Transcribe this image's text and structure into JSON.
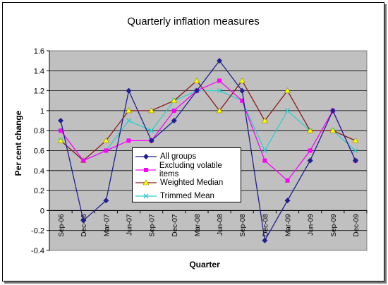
{
  "chart_data": {
    "type": "line",
    "title": "Quarterly inflation measures",
    "xlabel": "Quarter",
    "ylabel": "Per cent change",
    "categories": [
      "Sep-06",
      "Dec-06",
      "Mar-07",
      "Jun-07",
      "Sep-07",
      "Dec-07",
      "Mar-08",
      "Jun-08",
      "Sep-08",
      "Dec-08",
      "Mar-09",
      "Jun-09",
      "Sep-09",
      "Dec-09"
    ],
    "ylim": [
      -0.4,
      1.6
    ],
    "yticks": [
      "-0.4",
      "-0.2",
      "0",
      "0.2",
      "0.4",
      "0.6",
      "0.8",
      "1",
      "1.2",
      "1.4",
      "1.6"
    ],
    "grid": true,
    "legend_position": "center-left inside plot",
    "series": [
      {
        "name": "All groups",
        "color": "#1f1f8f",
        "marker": "diamond",
        "values": [
          0.9,
          -0.1,
          0.1,
          1.2,
          0.7,
          0.9,
          1.2,
          1.5,
          1.2,
          -0.3,
          0.1,
          0.5,
          1.0,
          0.5
        ]
      },
      {
        "name": "Excluding volatile items",
        "color": "#ff00ff",
        "marker": "square",
        "values": [
          0.8,
          0.5,
          0.6,
          0.7,
          0.7,
          1.0,
          1.2,
          1.3,
          1.1,
          0.5,
          0.3,
          0.6,
          1.0,
          0.5
        ]
      },
      {
        "name": "Weighted Median",
        "color": "#8b1a1a",
        "marker": "triangle",
        "values": [
          0.7,
          0.5,
          0.7,
          1.0,
          1.0,
          1.1,
          1.3,
          1.0,
          1.3,
          0.9,
          1.2,
          0.8,
          0.8,
          0.7
        ]
      },
      {
        "name": "Trimmed Mean",
        "color": "#33cccc",
        "marker": "cross",
        "values": [
          0.7,
          0.5,
          0.6,
          0.9,
          0.8,
          1.1,
          1.2,
          1.2,
          1.1,
          0.6,
          1.0,
          0.8,
          0.8,
          0.6
        ]
      }
    ]
  }
}
